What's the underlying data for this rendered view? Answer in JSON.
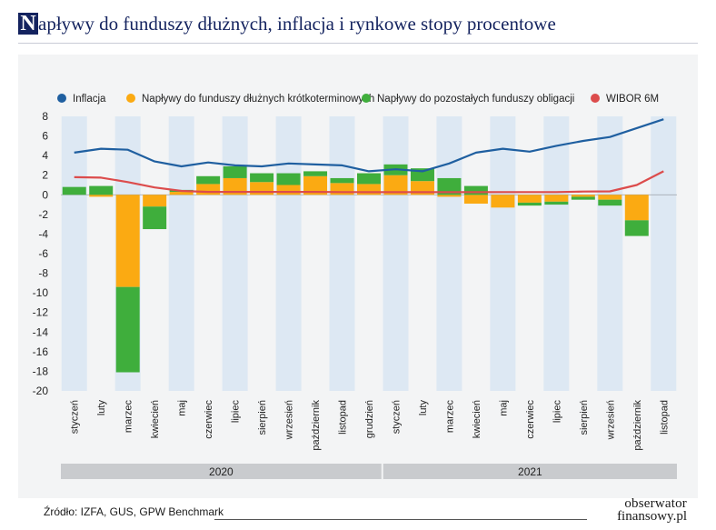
{
  "header": {
    "title_first_letter": "N",
    "title_rest": "apływy do funduszy dłużnych, inflacja i rynkowe stopy procentowe"
  },
  "footer": {
    "source": "Źródło:  IZFA, GUS, GPW Benchmark",
    "brand_line1": "obserwator",
    "brand_line2": "finansowy.pl"
  },
  "chart_data": {
    "type": "bar+line",
    "title": "Napływy do funduszy dłużnych, inflacja i rynkowe stopy procentowe",
    "categories": [
      "styczeń",
      "luty",
      "marzec",
      "kwiecień",
      "maj",
      "czerwiec",
      "lipiec",
      "sierpień",
      "wrzesień",
      "październik",
      "listopad",
      "grudzień",
      "styczeń",
      "luty",
      "marzec",
      "kwiecień",
      "maj",
      "czerwiec",
      "lipiec",
      "sierpień",
      "wrzesień",
      "październik",
      "listopad"
    ],
    "year_groups": [
      {
        "label": "2020",
        "from": 0,
        "to": 11
      },
      {
        "label": "2021",
        "from": 12,
        "to": 22
      }
    ],
    "ylim": [
      -20,
      8
    ],
    "yticks": [
      8,
      6,
      4,
      2,
      0,
      -2,
      -4,
      -6,
      -8,
      -10,
      -12,
      -14,
      -16,
      -18,
      -20
    ],
    "legend": [
      {
        "name": "Inflacja",
        "color": "#1f5fa0"
      },
      {
        "name": "Napływy do funduszy dłużnych krótkoterminowych",
        "color": "#fbaa12"
      },
      {
        "name": "Napływy do pozostałych funduszy obligacji",
        "color": "#3fae3c"
      },
      {
        "name": "WIBOR 6M",
        "color": "#dc4c4c"
      }
    ],
    "series": [
      {
        "name": "Napływy do funduszy dłużnych krótkoterminowych",
        "type": "stacked-bar",
        "color": "#fbaa12",
        "values": [
          0.0,
          -0.2,
          -9.4,
          -1.2,
          0.3,
          1.1,
          1.7,
          1.3,
          1.0,
          1.9,
          1.2,
          1.1,
          2.0,
          1.4,
          -0.2,
          -0.9,
          -1.3,
          -0.8,
          -0.7,
          -0.2,
          -0.5,
          -2.6,
          0.0
        ]
      },
      {
        "name": "Napływy do pozostałych funduszy obligacji",
        "type": "stacked-bar",
        "color": "#3fae3c",
        "values": [
          0.8,
          0.9,
          -8.7,
          -2.3,
          0.2,
          0.8,
          1.2,
          0.9,
          1.2,
          0.5,
          0.5,
          1.1,
          1.1,
          1.3,
          1.7,
          0.9,
          0.0,
          -0.3,
          -0.3,
          -0.3,
          -0.6,
          -1.6,
          0.0
        ]
      },
      {
        "name": "Inflacja",
        "type": "line",
        "color": "#1f5fa0",
        "values": [
          4.3,
          4.7,
          4.6,
          3.4,
          2.9,
          3.3,
          3.0,
          2.9,
          3.2,
          3.1,
          3.0,
          2.4,
          2.6,
          2.4,
          3.2,
          4.3,
          4.7,
          4.4,
          5.0,
          5.5,
          5.9,
          6.8,
          7.7
        ]
      },
      {
        "name": "WIBOR 6M",
        "type": "line",
        "color": "#dc4c4c",
        "values": [
          1.8,
          1.75,
          1.3,
          0.75,
          0.4,
          0.3,
          0.3,
          0.3,
          0.3,
          0.3,
          0.28,
          0.27,
          0.27,
          0.27,
          0.27,
          0.27,
          0.28,
          0.28,
          0.28,
          0.33,
          0.35,
          1.0,
          2.4
        ]
      }
    ],
    "xlabel": "",
    "ylabel": ""
  }
}
